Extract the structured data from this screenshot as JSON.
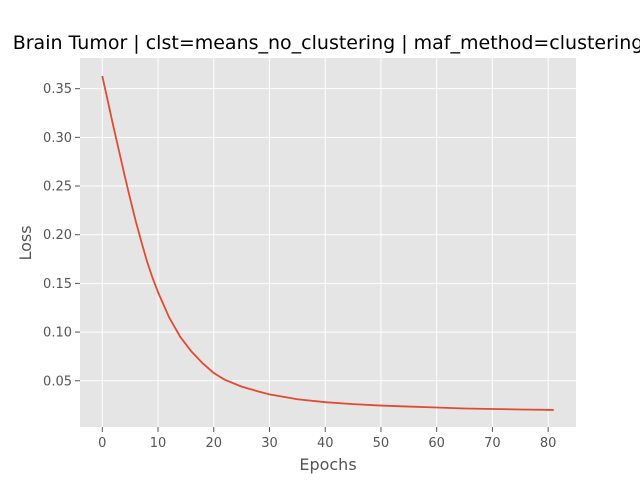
{
  "chart_data": {
    "type": "line",
    "title": "Brain Tumor | clst=means_no_clustering | maf_method=clustering",
    "xlabel": "Epochs",
    "ylabel": "Loss",
    "xlim": [
      -4,
      85
    ],
    "ylim": [
      0.0025,
      0.3815
    ],
    "xticks": [
      0,
      10,
      20,
      30,
      40,
      50,
      60,
      70,
      80
    ],
    "xtick_labels": [
      "0",
      "10",
      "20",
      "30",
      "40",
      "50",
      "60",
      "70",
      "80"
    ],
    "yticks": [
      0.05,
      0.1,
      0.15,
      0.2,
      0.25,
      0.3,
      0.35
    ],
    "ytick_labels": [
      "0.05",
      "0.10",
      "0.15",
      "0.20",
      "0.25",
      "0.30",
      "0.35"
    ],
    "grid": true,
    "line_color": "#e24a33",
    "background_color": "#e5e5e5",
    "grid_color": "#ffffff",
    "series": [
      {
        "x": [
          0,
          1,
          2,
          3,
          4,
          5,
          6,
          7,
          8,
          9,
          10,
          12,
          14,
          16,
          18,
          20,
          22,
          25,
          28,
          30,
          35,
          40,
          45,
          50,
          55,
          60,
          65,
          70,
          75,
          81
        ],
        "values": [
          0.363,
          0.337,
          0.311,
          0.286,
          0.261,
          0.237,
          0.214,
          0.193,
          0.173,
          0.156,
          0.141,
          0.115,
          0.095,
          0.08,
          0.068,
          0.058,
          0.051,
          0.044,
          0.039,
          0.036,
          0.031,
          0.028,
          0.026,
          0.0245,
          0.0235,
          0.0225,
          0.0215,
          0.021,
          0.0205,
          0.02
        ]
      }
    ]
  }
}
